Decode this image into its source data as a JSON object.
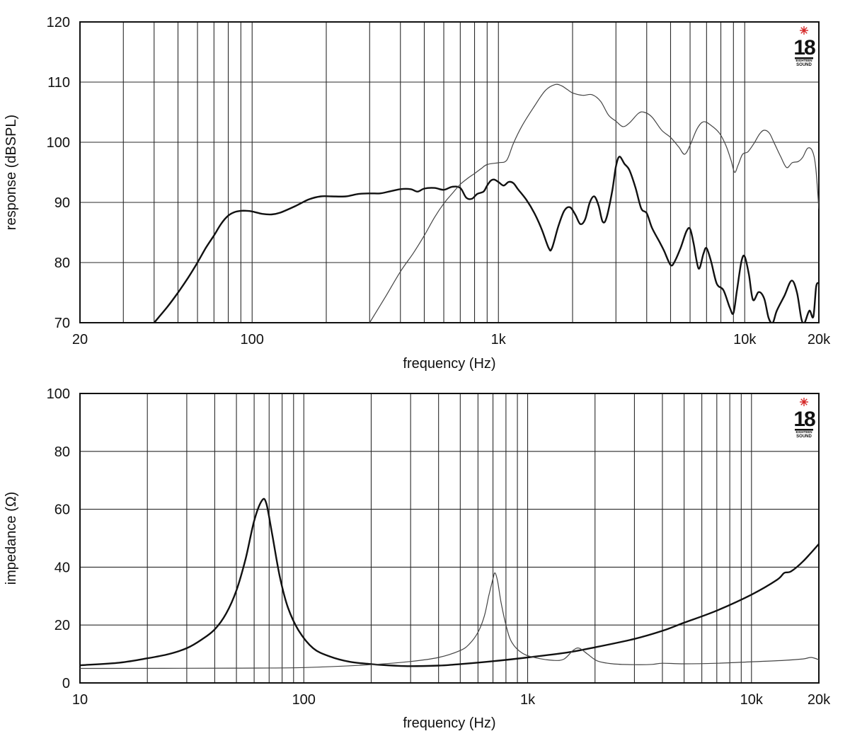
{
  "brand": {
    "name": "18 EIGHTEEN SOUND",
    "accent": "#d62b2b"
  },
  "chart_data": [
    {
      "type": "line",
      "xscale": "log",
      "xlim": [
        20,
        20000
      ],
      "ylim": [
        70,
        120
      ],
      "grid": true,
      "xlabel": "frequency (Hz)",
      "ylabel": "response (dBSPL)",
      "xticks": [
        {
          "value": 20,
          "label": "20"
        },
        {
          "value": 100,
          "label": "100"
        },
        {
          "value": 1000,
          "label": "1k"
        },
        {
          "value": 10000,
          "label": "10k"
        },
        {
          "value": 20000,
          "label": "20k"
        }
      ],
      "yticks": [
        {
          "value": 70,
          "label": "70"
        },
        {
          "value": 80,
          "label": "80"
        },
        {
          "value": 90,
          "label": "90"
        },
        {
          "value": 100,
          "label": "100"
        },
        {
          "value": 110,
          "label": "110"
        },
        {
          "value": 120,
          "label": "120"
        }
      ],
      "series": [
        {
          "key": "woofer-response",
          "stroke": "#111111",
          "weight": "heavy",
          "points": [
            [
              40,
              70
            ],
            [
              45,
              72.5
            ],
            [
              50,
              75
            ],
            [
              55,
              77.5
            ],
            [
              60,
              80
            ],
            [
              65,
              82.5
            ],
            [
              70,
              84.5
            ],
            [
              75,
              86.5
            ],
            [
              80,
              87.8
            ],
            [
              85,
              88.4
            ],
            [
              90,
              88.6
            ],
            [
              95,
              88.6
            ],
            [
              100,
              88.5
            ],
            [
              110,
              88.1
            ],
            [
              120,
              88
            ],
            [
              130,
              88.3
            ],
            [
              150,
              89.4
            ],
            [
              170,
              90.5
            ],
            [
              190,
              91
            ],
            [
              210,
              91
            ],
            [
              240,
              91
            ],
            [
              270,
              91.4
            ],
            [
              300,
              91.5
            ],
            [
              330,
              91.5
            ],
            [
              360,
              91.8
            ],
            [
              400,
              92.2
            ],
            [
              440,
              92.2
            ],
            [
              470,
              91.8
            ],
            [
              500,
              92.3
            ],
            [
              550,
              92.4
            ],
            [
              600,
              92.1
            ],
            [
              650,
              92.6
            ],
            [
              700,
              92.4
            ],
            [
              740,
              90.8
            ],
            [
              780,
              90.6
            ],
            [
              820,
              91.4
            ],
            [
              870,
              91.8
            ],
            [
              900,
              92.8
            ],
            [
              930,
              93.6
            ],
            [
              960,
              93.8
            ],
            [
              1000,
              93.4
            ],
            [
              1050,
              92.8
            ],
            [
              1100,
              93.4
            ],
            [
              1150,
              93.2
            ],
            [
              1200,
              92.2
            ],
            [
              1300,
              90.4
            ],
            [
              1400,
              88.2
            ],
            [
              1500,
              85.5
            ],
            [
              1600,
              82.4
            ],
            [
              1650,
              82.4
            ],
            [
              1750,
              86
            ],
            [
              1850,
              88.6
            ],
            [
              1950,
              89.2
            ],
            [
              2050,
              88
            ],
            [
              2150,
              86.4
            ],
            [
              2250,
              87.2
            ],
            [
              2350,
              90
            ],
            [
              2450,
              91
            ],
            [
              2550,
              89.5
            ],
            [
              2650,
              86.8
            ],
            [
              2750,
              87.5
            ],
            [
              2900,
              92
            ],
            [
              3000,
              96
            ],
            [
              3100,
              97.6
            ],
            [
              3250,
              96.4
            ],
            [
              3400,
              95.4
            ],
            [
              3600,
              92.5
            ],
            [
              3800,
              89
            ],
            [
              4000,
              88.2
            ],
            [
              4200,
              85.8
            ],
            [
              4500,
              83.5
            ],
            [
              4700,
              82
            ],
            [
              5000,
              79.6
            ],
            [
              5200,
              80.2
            ],
            [
              5500,
              82.5
            ],
            [
              5800,
              85.2
            ],
            [
              6000,
              85.6
            ],
            [
              6200,
              83.2
            ],
            [
              6500,
              79
            ],
            [
              6800,
              81.5
            ],
            [
              7000,
              82.4
            ],
            [
              7300,
              80.2
            ],
            [
              7700,
              76.5
            ],
            [
              8200,
              75.4
            ],
            [
              8700,
              72.5
            ],
            [
              9000,
              71.6
            ],
            [
              9300,
              75.4
            ],
            [
              9700,
              80.2
            ],
            [
              10000,
              81
            ],
            [
              10400,
              78
            ],
            [
              10800,
              73.8
            ],
            [
              11400,
              75.1
            ],
            [
              12000,
              74
            ],
            [
              12500,
              70.8
            ],
            [
              13000,
              70
            ],
            [
              13500,
              72
            ],
            [
              14500,
              74.5
            ],
            [
              15500,
              77
            ],
            [
              16300,
              75
            ],
            [
              17000,
              70.6
            ],
            [
              17500,
              70
            ],
            [
              18300,
              72
            ],
            [
              19000,
              71
            ],
            [
              19500,
              76
            ],
            [
              20000,
              76.6
            ]
          ]
        },
        {
          "key": "tweeter-response",
          "stroke": "#444444",
          "weight": "light",
          "points": [
            [
              300,
              70
            ],
            [
              350,
              74.5
            ],
            [
              400,
              78.5
            ],
            [
              450,
              81.5
            ],
            [
              500,
              84.5
            ],
            [
              550,
              87.5
            ],
            [
              600,
              89.8
            ],
            [
              650,
              91.5
            ],
            [
              700,
              93
            ],
            [
              750,
              94
            ],
            [
              800,
              94.8
            ],
            [
              850,
              95.6
            ],
            [
              900,
              96.3
            ],
            [
              1000,
              96.6
            ],
            [
              1080,
              97
            ],
            [
              1150,
              99.8
            ],
            [
              1250,
              102.8
            ],
            [
              1400,
              106
            ],
            [
              1550,
              108.6
            ],
            [
              1700,
              109.6
            ],
            [
              1800,
              109.4
            ],
            [
              1900,
              108.8
            ],
            [
              2000,
              108.2
            ],
            [
              2200,
              107.8
            ],
            [
              2400,
              107.9
            ],
            [
              2600,
              106.8
            ],
            [
              2800,
              104.5
            ],
            [
              3000,
              103.5
            ],
            [
              3200,
              102.6
            ],
            [
              3400,
              103.2
            ],
            [
              3700,
              104.8
            ],
            [
              3900,
              105
            ],
            [
              4200,
              104.2
            ],
            [
              4600,
              102
            ],
            [
              5000,
              100.8
            ],
            [
              5400,
              99.2
            ],
            [
              5700,
              98
            ],
            [
              6000,
              99.5
            ],
            [
              6400,
              102.2
            ],
            [
              6800,
              103.4
            ],
            [
              7300,
              102.8
            ],
            [
              7900,
              101.5
            ],
            [
              8400,
              99.4
            ],
            [
              8800,
              97
            ],
            [
              9100,
              95
            ],
            [
              9400,
              96.2
            ],
            [
              9800,
              98
            ],
            [
              10300,
              98.4
            ],
            [
              10900,
              99.8
            ],
            [
              11500,
              101.4
            ],
            [
              12000,
              102
            ],
            [
              12600,
              101.5
            ],
            [
              13200,
              99.8
            ],
            [
              14000,
              97.6
            ],
            [
              14800,
              95.8
            ],
            [
              15600,
              96.6
            ],
            [
              16500,
              96.8
            ],
            [
              17200,
              97.5
            ],
            [
              18000,
              99
            ],
            [
              18800,
              98.6
            ],
            [
              19400,
              96
            ],
            [
              20000,
              89
            ]
          ]
        }
      ]
    },
    {
      "type": "line",
      "xscale": "log",
      "xlim": [
        10,
        20000
      ],
      "ylim": [
        0,
        100
      ],
      "grid": true,
      "xlabel": "frequency (Hz)",
      "ylabel": "impedance (Ω)",
      "xticks": [
        {
          "value": 10,
          "label": "10"
        },
        {
          "value": 100,
          "label": "100"
        },
        {
          "value": 1000,
          "label": "1k"
        },
        {
          "value": 10000,
          "label": "10k"
        },
        {
          "value": 20000,
          "label": "20k"
        }
      ],
      "yticks": [
        {
          "value": 0,
          "label": "0"
        },
        {
          "value": 20,
          "label": "20"
        },
        {
          "value": 40,
          "label": "40"
        },
        {
          "value": 60,
          "label": "60"
        },
        {
          "value": 80,
          "label": "80"
        },
        {
          "value": 100,
          "label": "100"
        }
      ],
      "series": [
        {
          "key": "woofer-impedance",
          "stroke": "#111111",
          "weight": "heavy",
          "points": [
            [
              10,
              6.1
            ],
            [
              15,
              7
            ],
            [
              20,
              8.5
            ],
            [
              25,
              10
            ],
            [
              30,
              12
            ],
            [
              35,
              15
            ],
            [
              40,
              18.5
            ],
            [
              45,
              24
            ],
            [
              50,
              32
            ],
            [
              55,
              43
            ],
            [
              60,
              56
            ],
            [
              65,
              63
            ],
            [
              68,
              62
            ],
            [
              72,
              52
            ],
            [
              78,
              37
            ],
            [
              85,
              26
            ],
            [
              95,
              18
            ],
            [
              110,
              12
            ],
            [
              130,
              9.2
            ],
            [
              160,
              7.3
            ],
            [
              200,
              6.5
            ],
            [
              250,
              6
            ],
            [
              300,
              5.8
            ],
            [
              400,
              6
            ],
            [
              500,
              6.5
            ],
            [
              700,
              7.5
            ],
            [
              1000,
              8.8
            ],
            [
              1500,
              10.5
            ],
            [
              2000,
              12.3
            ],
            [
              3000,
              15.2
            ],
            [
              4000,
              18
            ],
            [
              5000,
              20.8
            ],
            [
              7000,
              25
            ],
            [
              10000,
              30.5
            ],
            [
              13000,
              35.6
            ],
            [
              14000,
              38
            ],
            [
              15000,
              38.5
            ],
            [
              17000,
              42
            ],
            [
              20000,
              48
            ]
          ]
        },
        {
          "key": "tweeter-impedance",
          "stroke": "#444444",
          "weight": "light",
          "points": [
            [
              10,
              5
            ],
            [
              50,
              5.1
            ],
            [
              100,
              5.3
            ],
            [
              200,
              6.3
            ],
            [
              300,
              7.4
            ],
            [
              400,
              8.8
            ],
            [
              500,
              11.2
            ],
            [
              550,
              13.5
            ],
            [
              600,
              17.5
            ],
            [
              640,
              23
            ],
            [
              670,
              30
            ],
            [
              700,
              36
            ],
            [
              715,
              38
            ],
            [
              735,
              35
            ],
            [
              760,
              28
            ],
            [
              800,
              20
            ],
            [
              850,
              14
            ],
            [
              950,
              10.2
            ],
            [
              1100,
              8.6
            ],
            [
              1300,
              7.8
            ],
            [
              1450,
              8.2
            ],
            [
              1600,
              11.3
            ],
            [
              1700,
              12
            ],
            [
              1850,
              10
            ],
            [
              2050,
              7.6
            ],
            [
              2400,
              6.6
            ],
            [
              3000,
              6.3
            ],
            [
              3600,
              6.4
            ],
            [
              4000,
              6.8
            ],
            [
              5000,
              6.6
            ],
            [
              7000,
              6.8
            ],
            [
              10000,
              7.3
            ],
            [
              14000,
              7.8
            ],
            [
              17000,
              8.3
            ],
            [
              18500,
              8.8
            ],
            [
              20000,
              8
            ]
          ]
        }
      ]
    }
  ]
}
